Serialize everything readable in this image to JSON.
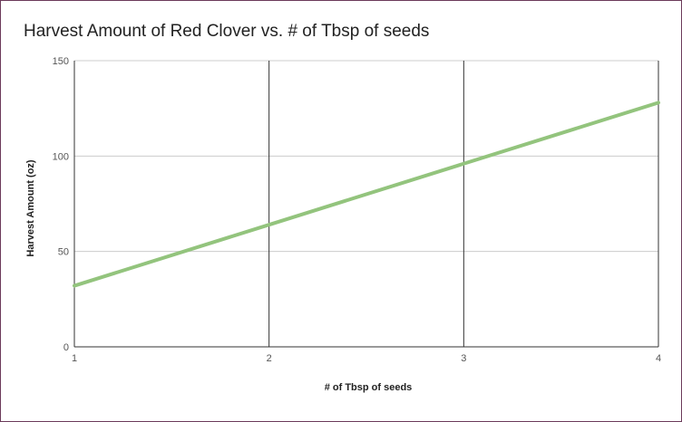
{
  "chart_data": {
    "type": "line",
    "title": "Harvest Amount of Red Clover vs. # of Tbsp of seeds",
    "xlabel": "# of Tbsp of seeds",
    "ylabel": "Harvest Amount (oz)",
    "x": [
      1,
      2,
      3,
      4
    ],
    "xticks": [
      "1",
      "2",
      "3",
      "4"
    ],
    "yticks": [
      "0",
      "50",
      "100",
      "150"
    ],
    "xlim": [
      1,
      4
    ],
    "ylim": [
      0,
      150
    ],
    "grid": true,
    "series": [
      {
        "values": [
          32,
          64,
          96,
          128
        ],
        "color": "#93c47d"
      }
    ]
  }
}
